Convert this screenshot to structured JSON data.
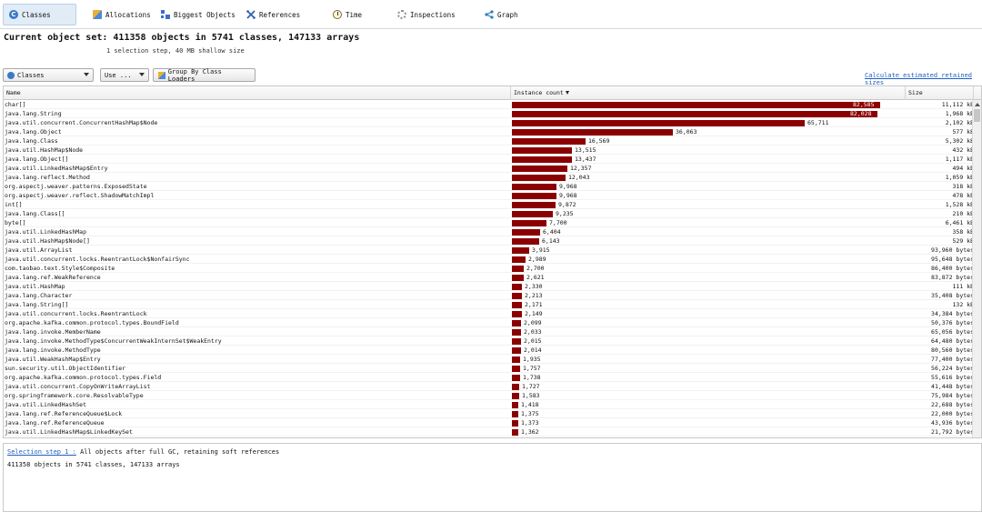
{
  "tabs": [
    {
      "label": "Classes",
      "icon": "classes-icon",
      "active": true
    },
    {
      "label": "Allocations",
      "icon": "allocations-icon"
    },
    {
      "label": "Biggest Objects",
      "icon": "biggest-objects-icon"
    },
    {
      "label": "References",
      "icon": "references-icon"
    },
    {
      "label": "Time",
      "icon": "time-icon"
    },
    {
      "label": "Inspections",
      "icon": "inspections-icon"
    },
    {
      "label": "Graph",
      "icon": "graph-icon"
    }
  ],
  "heading": {
    "title": "Current object set: 411358 objects in 5741 classes, 147133 arrays",
    "subtitle": "1 selection step, 40 MB shallow size"
  },
  "toolbar": {
    "view_select": "Classes",
    "use_button": "Use ...",
    "group_button": "Group By Class Loaders",
    "retained_link": "Calculate estimated retained sizes"
  },
  "table": {
    "columns": {
      "name": "Name",
      "count": "Instance count",
      "size": "Size"
    },
    "max_count": 82585,
    "rows": [
      {
        "name": "char[]",
        "count": 82585,
        "count_label": "82,585",
        "size": "11,112 kB"
      },
      {
        "name": "java.lang.String",
        "count": 82028,
        "count_label": "82,028",
        "size": "1,968 kB"
      },
      {
        "name": "java.util.concurrent.ConcurrentHashMap$Node",
        "count": 65711,
        "count_label": "65,711",
        "size": "2,102 kB"
      },
      {
        "name": "java.lang.Object",
        "count": 36063,
        "count_label": "36,063",
        "size": "577 kB"
      },
      {
        "name": "java.lang.Class",
        "count": 16569,
        "count_label": "16,569",
        "size": "5,302 kB"
      },
      {
        "name": "java.util.HashMap$Node",
        "count": 13515,
        "count_label": "13,515",
        "size": "432 kB"
      },
      {
        "name": "java.lang.Object[]",
        "count": 13437,
        "count_label": "13,437",
        "size": "1,117 kB"
      },
      {
        "name": "java.util.LinkedHashMap$Entry",
        "count": 12357,
        "count_label": "12,357",
        "size": "494 kB"
      },
      {
        "name": "java.lang.reflect.Method",
        "count": 12043,
        "count_label": "12,043",
        "size": "1,059 kB"
      },
      {
        "name": "org.aspectj.weaver.patterns.ExposedState",
        "count": 9968,
        "count_label": "9,968",
        "size": "318 kB"
      },
      {
        "name": "org.aspectj.weaver.reflect.ShadowMatchImpl",
        "count": 9968,
        "count_label": "9,968",
        "size": "478 kB"
      },
      {
        "name": "int[]",
        "count": 9872,
        "count_label": "9,872",
        "size": "1,528 kB"
      },
      {
        "name": "java.lang.Class[]",
        "count": 9235,
        "count_label": "9,235",
        "size": "210 kB"
      },
      {
        "name": "byte[]",
        "count": 7700,
        "count_label": "7,700",
        "size": "6,461 kB"
      },
      {
        "name": "java.util.LinkedHashMap",
        "count": 6404,
        "count_label": "6,404",
        "size": "358 kB"
      },
      {
        "name": "java.util.HashMap$Node[]",
        "count": 6143,
        "count_label": "6,143",
        "size": "529 kB"
      },
      {
        "name": "java.util.ArrayList",
        "count": 3915,
        "count_label": "3,915",
        "size": "93,960 bytes"
      },
      {
        "name": "java.util.concurrent.locks.ReentrantLock$NonfairSync",
        "count": 2989,
        "count_label": "2,989",
        "size": "95,648 bytes"
      },
      {
        "name": "com.taobao.text.Style$Composite",
        "count": 2700,
        "count_label": "2,700",
        "size": "86,400 bytes"
      },
      {
        "name": "java.lang.ref.WeakReference",
        "count": 2621,
        "count_label": "2,621",
        "size": "83,872 bytes"
      },
      {
        "name": "java.util.HashMap",
        "count": 2330,
        "count_label": "2,330",
        "size": "111 kB"
      },
      {
        "name": "java.lang.Character",
        "count": 2213,
        "count_label": "2,213",
        "size": "35,408 bytes"
      },
      {
        "name": "java.lang.String[]",
        "count": 2171,
        "count_label": "2,171",
        "size": "132 kB"
      },
      {
        "name": "java.util.concurrent.locks.ReentrantLock",
        "count": 2149,
        "count_label": "2,149",
        "size": "34,384 bytes"
      },
      {
        "name": "org.apache.kafka.common.protocol.types.BoundField",
        "count": 2099,
        "count_label": "2,099",
        "size": "50,376 bytes"
      },
      {
        "name": "java.lang.invoke.MemberName",
        "count": 2033,
        "count_label": "2,033",
        "size": "65,056 bytes"
      },
      {
        "name": "java.lang.invoke.MethodType$ConcurrentWeakInternSet$WeakEntry",
        "count": 2015,
        "count_label": "2,015",
        "size": "64,480 bytes"
      },
      {
        "name": "java.lang.invoke.MethodType",
        "count": 2014,
        "count_label": "2,014",
        "size": "80,560 bytes"
      },
      {
        "name": "java.util.WeakHashMap$Entry",
        "count": 1935,
        "count_label": "1,935",
        "size": "77,400 bytes"
      },
      {
        "name": "sun.security.util.ObjectIdentifier",
        "count": 1757,
        "count_label": "1,757",
        "size": "56,224 bytes"
      },
      {
        "name": "org.apache.kafka.common.protocol.types.Field",
        "count": 1738,
        "count_label": "1,738",
        "size": "55,616 bytes"
      },
      {
        "name": "java.util.concurrent.CopyOnWriteArrayList",
        "count": 1727,
        "count_label": "1,727",
        "size": "41,448 bytes"
      },
      {
        "name": "org.springframework.core.ResolvableType",
        "count": 1583,
        "count_label": "1,583",
        "size": "75,984 bytes"
      },
      {
        "name": "java.util.LinkedHashSet",
        "count": 1418,
        "count_label": "1,418",
        "size": "22,688 bytes"
      },
      {
        "name": "java.lang.ref.ReferenceQueue$Lock",
        "count": 1375,
        "count_label": "1,375",
        "size": "22,000 bytes"
      },
      {
        "name": "java.lang.ref.ReferenceQueue",
        "count": 1373,
        "count_label": "1,373",
        "size": "43,936 bytes"
      },
      {
        "name": "java.util.LinkedHashMap$LinkedKeySet",
        "count": 1362,
        "count_label": "1,362",
        "size": "21,792 bytes"
      }
    ]
  },
  "bottom": {
    "selection_link": "Selection step 1 :",
    "selection_text": "All objects after full GC, retaining soft references",
    "summary": "411358 objects in 5741 classes, 147133 arrays"
  },
  "colors": {
    "bar": "#8b0000",
    "link": "#1f5fbf",
    "active_tab": "#e1ecf7"
  }
}
